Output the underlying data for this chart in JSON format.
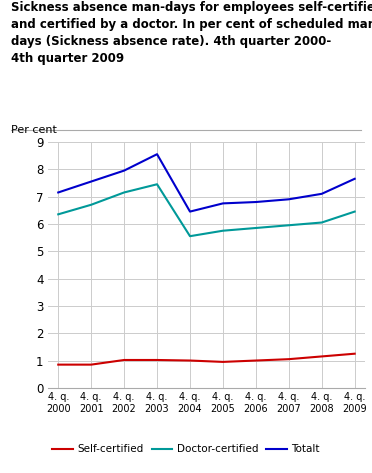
{
  "title_line1": "Sickness absence man-days for employees self-certified",
  "title_line2": "and certified by a doctor. In per cent of scheduled man",
  "title_line3": "days (Sickness absence rate). 4th quarter 2000-",
  "title_line4": "4th quarter 2009",
  "ylabel_text": "Per cent",
  "x_labels": [
    "4. q.\n2000",
    "4. q.\n2001",
    "4. q.\n2002",
    "4. q.\n2003",
    "4. q.\n2004",
    "4. q.\n2005",
    "4. q.\n2006",
    "4. q.\n2007",
    "4. q.\n2008",
    "4. q.\n2009"
  ],
  "self_certified": [
    0.85,
    0.85,
    1.02,
    1.02,
    1.0,
    0.95,
    1.0,
    1.05,
    1.15,
    1.25
  ],
  "doctor_certified": [
    6.35,
    6.7,
    7.15,
    7.45,
    5.55,
    5.75,
    5.85,
    5.95,
    6.05,
    6.45
  ],
  "totalt": [
    7.15,
    7.55,
    7.95,
    8.55,
    6.45,
    6.75,
    6.8,
    6.9,
    7.1,
    7.65
  ],
  "self_color": "#cc0000",
  "doctor_color": "#009999",
  "totalt_color": "#0000cc",
  "ylim": [
    0,
    9
  ],
  "yticks": [
    0,
    1,
    2,
    3,
    4,
    5,
    6,
    7,
    8,
    9
  ],
  "grid_color": "#cccccc",
  "legend_labels": [
    "Self-certified",
    "Doctor-certified",
    "Totalt"
  ]
}
